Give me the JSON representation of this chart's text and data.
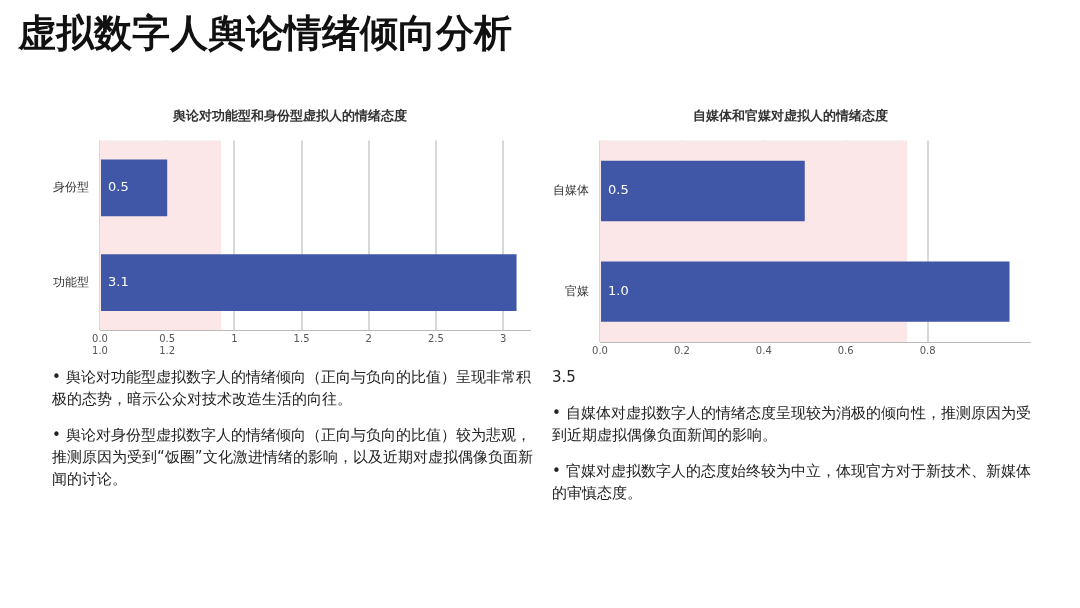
{
  "chart_data": [
    {
      "type": "bar",
      "orientation": "horizontal",
      "title": "虚拟数字人舆论情绪倾向分析",
      "subtitle": "舆论对功能型和身份型虚拟人的情绪态度",
      "categories": [
        "身份型",
        "功能型"
      ],
      "values": [
        0.5,
        3.1
      ],
      "color": "#4057a8",
      "data_labels": true,
      "xlim": [
        0,
        3.2
      ],
      "xticks": [
        {
          "value": 0,
          "label": "0.0 1.0"
        },
        {
          "value": 0.5,
          "label": "0.5 1.2"
        },
        1.0,
        1.5,
        2.0,
        2.5,
        3.0
      ],
      "grid": "x",
      "legend": false,
      "bands": [
        {
          "axis": "x",
          "from": 0,
          "to": 0.9,
          "color": "#fbe6e8"
        }
      ],
      "annotations": [
        "• 舆论对功能型虚拟数字人的情绪倾向（正向与负向的比值）呈现非常积极的态势，暗示公众对技术改造生活的向往。",
        "• 舆论对身份型虚拟数字人的情绪倾向（正向与负向的比值）较为悲观，推测原因为受到“饭圈”文化激进情绪的影响，以及近期对虚拟偶像负面新闻的讨论。"
      ]
    },
    {
      "type": "bar",
      "orientation": "horizontal",
      "title": "自媒体和官媒对虚拟人的情绪态度",
      "categories": [
        "自媒体",
        "官媒"
      ],
      "values": [
        0.5,
        1.0
      ],
      "value_labels": [
        "0.5",
        "1.0"
      ],
      "color": "#4057a8",
      "xlim": [
        0,
        1.05
      ],
      "xticks": [
        {
          "value": 0,
          "label": "0.0"
        },
        {
          "value": 0.2,
          "label": "0.2"
        },
        {
          "value": 0.4,
          "label": "0.4"
        },
        {
          "value": 0.6,
          "label": "0.6"
        },
        {
          "value": 0.8,
          "label": "0.8"
        }
      ],
      "grid": "x",
      "legend": false,
      "bands": [
        {
          "axis": "x",
          "from": 0,
          "to": 0.75,
          "color": "#fbe6e8"
        }
      ],
      "annotations": [
        "3.5",
        "• 自媒体对虚拟数字人的情绪态度呈现较为消极的倾向性，推测原因为受到近期虚拟偶像负面新闻的影响。",
        "• 官媒对虚拟数字人的态度始终较为中立，体现官方对于新技术、新媒体的审慎态度。"
      ]
    }
  ]
}
